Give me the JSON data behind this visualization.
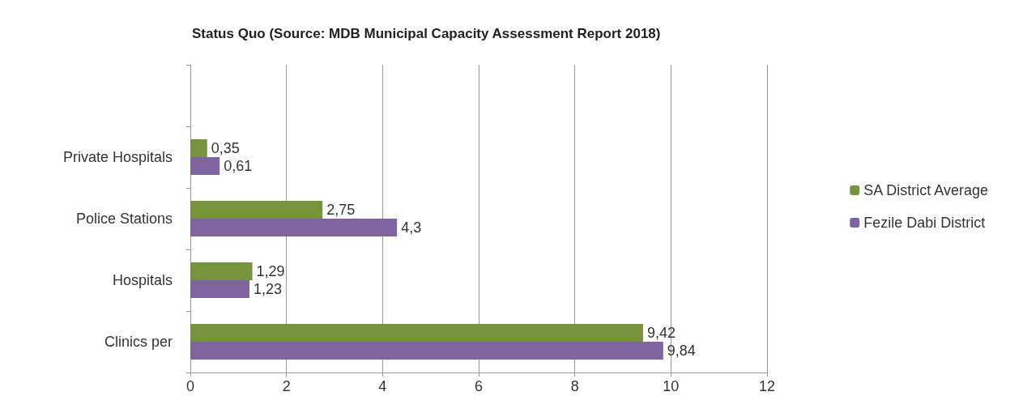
{
  "chart_data": {
    "type": "bar",
    "orientation": "horizontal",
    "title": "Status Quo (Source: MDB Municipal Capacity Assessment Report 2018)",
    "categories": [
      null,
      "Private Hospitals",
      "Police Stations",
      "Hospitals",
      "Clinics per"
    ],
    "series": [
      {
        "name": "SA District Average",
        "color": "#77933c",
        "values": [
          null,
          0.35,
          2.75,
          1.29,
          9.42
        ],
        "value_labels": [
          null,
          "0,35",
          "2,75",
          "1,29",
          "9,42"
        ]
      },
      {
        "name": "Fezile Dabi District",
        "color": "#8064a2",
        "values": [
          null,
          0.61,
          4.3,
          1.23,
          9.84
        ],
        "value_labels": [
          null,
          "0,61",
          "4,3",
          "1,23",
          "9,84"
        ]
      }
    ],
    "xlim": [
      0,
      12
    ],
    "xticks": [
      0,
      2,
      4,
      6,
      8,
      10,
      12
    ],
    "grid": "x",
    "legend": "right"
  }
}
